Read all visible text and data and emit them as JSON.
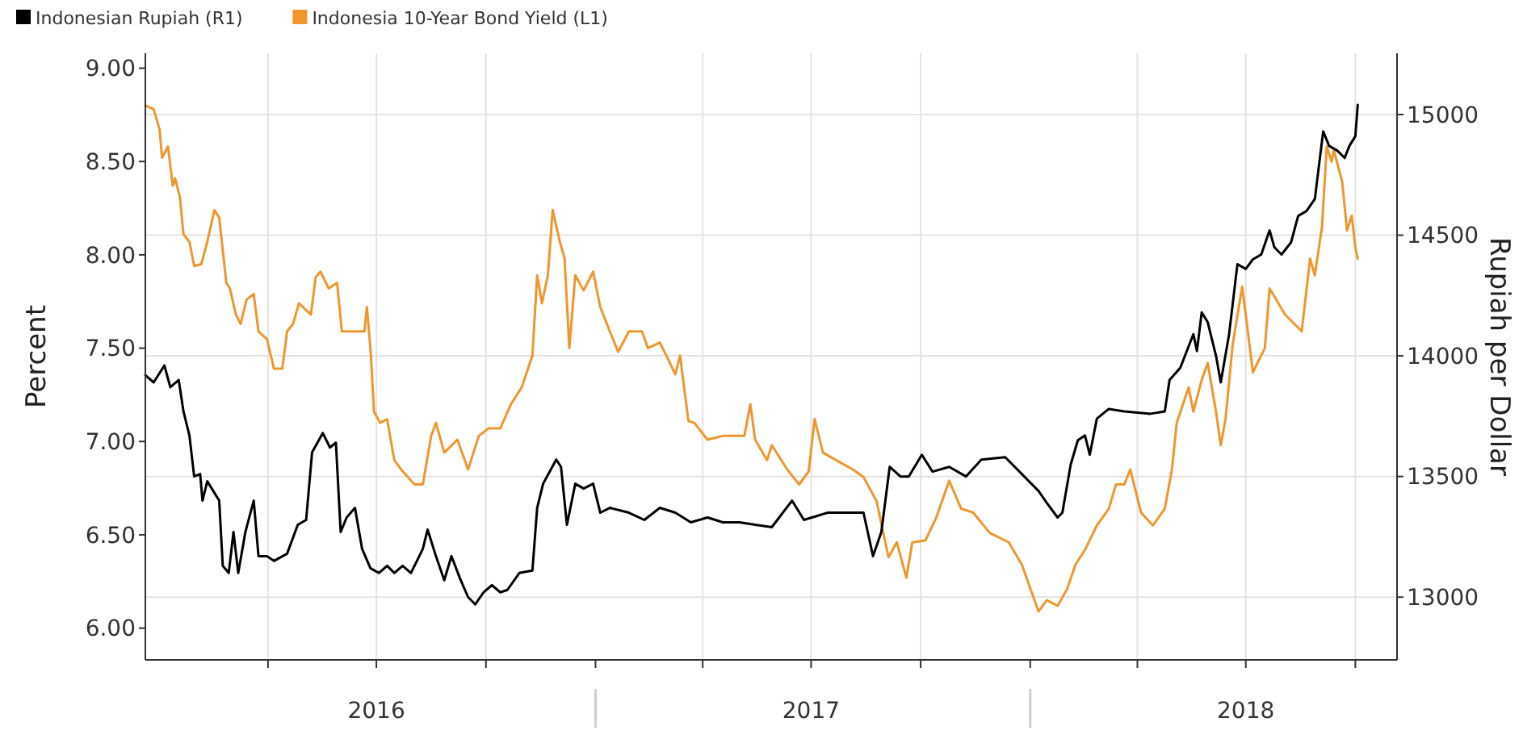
{
  "chart_data": {
    "type": "line",
    "ylabel": "Percent",
    "y2label": "Rupiah per Dollar",
    "legend": "top left",
    "grid": true,
    "xlim": [
      "2015-12-20",
      "2018-11-05"
    ],
    "xticks": [
      {
        "value": "2016-04-01",
        "label": null
      },
      {
        "value": "2016-07-01",
        "label": "2016"
      },
      {
        "value": "2016-10-01",
        "label": null
      },
      {
        "value": "2017-01-01",
        "label": null
      },
      {
        "value": "2017-04-01",
        "label": null
      },
      {
        "value": "2017-07-01",
        "label": "2017"
      },
      {
        "value": "2017-10-01",
        "label": null
      },
      {
        "value": "2018-01-01",
        "label": null
      },
      {
        "value": "2018-04-01",
        "label": null
      },
      {
        "value": "2018-07-01",
        "label": "2018"
      },
      {
        "value": "2018-10-01",
        "label": null
      }
    ],
    "ylim": [
      5.83,
      9.08
    ],
    "yticks": [
      {
        "value": 6,
        "label": "6.00"
      },
      {
        "value": 6.5,
        "label": "6.50"
      },
      {
        "value": 7,
        "label": "7.00"
      },
      {
        "value": 7.5,
        "label": "7.50"
      },
      {
        "value": 8,
        "label": "8.00"
      },
      {
        "value": 8.5,
        "label": "8.50"
      },
      {
        "value": 9,
        "label": "9.00"
      }
    ],
    "y2lim": [
      12740,
      15254
    ],
    "y2ticks": [
      13000,
      13500,
      14000,
      14500,
      15000
    ],
    "series": [
      {
        "name": "Indonesian Rupiah (R1)",
        "color": "#000000",
        "axis": "y2",
        "x": [
          "2015-12-20",
          "2015-12-27",
          "2016-01-05",
          "2016-01-10",
          "2016-01-17",
          "2016-01-21",
          "2016-01-26",
          "2016-01-30",
          "2016-02-04",
          "2016-02-06",
          "2016-02-10",
          "2016-02-20",
          "2016-02-23",
          "2016-02-28",
          "2016-03-03",
          "2016-03-07",
          "2016-03-13",
          "2016-03-20",
          "2016-03-24",
          "2016-03-31",
          "2016-04-06",
          "2016-04-17",
          "2016-04-26",
          "2016-05-03",
          "2016-05-08",
          "2016-05-17",
          "2016-05-23",
          "2016-05-28",
          "2016-06-01",
          "2016-06-06",
          "2016-06-13",
          "2016-06-19",
          "2016-06-26",
          "2016-07-03",
          "2016-07-10",
          "2016-07-16",
          "2016-07-23",
          "2016-07-30",
          "2016-08-09",
          "2016-08-13",
          "2016-08-20",
          "2016-08-27",
          "2016-09-02",
          "2016-09-09",
          "2016-09-16",
          "2016-09-22",
          "2016-09-29",
          "2016-10-06",
          "2016-10-13",
          "2016-10-19",
          "2016-10-29",
          "2016-11-09",
          "2016-11-13",
          "2016-11-18",
          "2016-11-29",
          "2016-12-03",
          "2016-12-08",
          "2016-12-15",
          "2016-12-22",
          "2016-12-30",
          "2017-01-05",
          "2017-01-13",
          "2017-01-29",
          "2017-02-11",
          "2017-02-24",
          "2017-03-09",
          "2017-03-22",
          "2017-04-05",
          "2017-04-18",
          "2017-05-02",
          "2017-05-15",
          "2017-05-29",
          "2017-06-15",
          "2017-06-25",
          "2017-07-15",
          "2017-07-28",
          "2017-08-14",
          "2017-08-22",
          "2017-08-29",
          "2017-09-05",
          "2017-09-14",
          "2017-09-21",
          "2017-10-02",
          "2017-10-11",
          "2017-10-25",
          "2017-11-08",
          "2017-11-21",
          "2017-12-11",
          "2017-12-27",
          "2018-01-08",
          "2018-01-15",
          "2018-01-24",
          "2018-01-28",
          "2018-02-04",
          "2018-02-10",
          "2018-02-16",
          "2018-02-20",
          "2018-02-26",
          "2018-03-08",
          "2018-03-21",
          "2018-04-12",
          "2018-04-24",
          "2018-04-28",
          "2018-05-07",
          "2018-05-18",
          "2018-05-21",
          "2018-05-25",
          "2018-05-30",
          "2018-06-06",
          "2018-06-10",
          "2018-06-17",
          "2018-06-24",
          "2018-07-01",
          "2018-07-07",
          "2018-07-14",
          "2018-07-21",
          "2018-07-25",
          "2018-07-31",
          "2018-08-08",
          "2018-08-14",
          "2018-08-21",
          "2018-08-28",
          "2018-09-04",
          "2018-09-09",
          "2018-09-16",
          "2018-09-22",
          "2018-09-26",
          "2018-10-01",
          "2018-10-03"
        ],
        "values": [
          13920,
          13890,
          13960,
          13870,
          13900,
          13770,
          13670,
          13500,
          13510,
          13400,
          13480,
          13400,
          13130,
          13100,
          13270,
          13100,
          13270,
          13400,
          13170,
          13170,
          13150,
          13180,
          13300,
          13320,
          13600,
          13680,
          13620,
          13640,
          13270,
          13330,
          13370,
          13200,
          13120,
          13100,
          13130,
          13100,
          13130,
          13100,
          13200,
          13280,
          13170,
          13070,
          13170,
          13080,
          13000,
          12970,
          13020,
          13050,
          13020,
          13030,
          13100,
          13110,
          13370,
          13470,
          13570,
          13540,
          13300,
          13470,
          13450,
          13470,
          13350,
          13370,
          13350,
          13320,
          13370,
          13350,
          13310,
          13330,
          13310,
          13310,
          13300,
          13290,
          13400,
          13320,
          13350,
          13350,
          13350,
          13170,
          13270,
          13540,
          13500,
          13500,
          13590,
          13520,
          13540,
          13500,
          13570,
          13580,
          13500,
          13440,
          13390,
          13330,
          13350,
          13550,
          13650,
          13670,
          13590,
          13740,
          13780,
          13770,
          13760,
          13770,
          13900,
          13950,
          14090,
          14020,
          14180,
          14140,
          14000,
          13890,
          14090,
          14380,
          14360,
          14400,
          14420,
          14520,
          14450,
          14420,
          14470,
          14580,
          14600,
          14650,
          14930,
          14870,
          14850,
          14820,
          14870,
          14910,
          15040
        ]
      },
      {
        "name": "Indonesia 10-Year Bond Yield (L1)",
        "color": "#f0962e",
        "axis": "y",
        "x": [
          "2015-12-20",
          "2015-12-27",
          "2016-01-01",
          "2016-01-03",
          "2016-01-08",
          "2016-01-12",
          "2016-01-14",
          "2016-01-18",
          "2016-01-21",
          "2016-01-26",
          "2016-01-30",
          "2016-02-05",
          "2016-02-10",
          "2016-02-16",
          "2016-02-20",
          "2016-02-26",
          "2016-02-29",
          "2016-03-05",
          "2016-03-09",
          "2016-03-14",
          "2016-03-20",
          "2016-03-24",
          "2016-03-31",
          "2016-04-06",
          "2016-04-13",
          "2016-04-17",
          "2016-04-22",
          "2016-04-27",
          "2016-05-07",
          "2016-05-11",
          "2016-05-15",
          "2016-05-22",
          "2016-05-29",
          "2016-06-02",
          "2016-06-13",
          "2016-06-21",
          "2016-06-23",
          "2016-06-26",
          "2016-06-29",
          "2016-07-04",
          "2016-07-10",
          "2016-07-16",
          "2016-07-23",
          "2016-08-02",
          "2016-08-09",
          "2016-08-16",
          "2016-08-20",
          "2016-08-27",
          "2016-09-07",
          "2016-09-16",
          "2016-09-25",
          "2016-10-03",
          "2016-10-13",
          "2016-10-22",
          "2016-10-31",
          "2016-11-09",
          "2016-11-13",
          "2016-11-17",
          "2016-11-22",
          "2016-11-26",
          "2016-12-02",
          "2016-12-06",
          "2016-12-10",
          "2016-12-15",
          "2016-12-22",
          "2016-12-30",
          "2017-01-05",
          "2017-01-13",
          "2017-01-20",
          "2017-01-29",
          "2017-02-09",
          "2017-02-14",
          "2017-02-24",
          "2017-03-03",
          "2017-03-09",
          "2017-03-13",
          "2017-03-20",
          "2017-03-25",
          "2017-04-05",
          "2017-04-18",
          "2017-05-06",
          "2017-05-11",
          "2017-05-15",
          "2017-05-25",
          "2017-05-29",
          "2017-06-11",
          "2017-06-21",
          "2017-06-29",
          "2017-07-04",
          "2017-07-11",
          "2017-07-22",
          "2017-08-05",
          "2017-08-14",
          "2017-08-25",
          "2017-09-04",
          "2017-09-11",
          "2017-09-19",
          "2017-09-24",
          "2017-10-05",
          "2017-10-14",
          "2017-10-25",
          "2017-11-04",
          "2017-11-14",
          "2017-11-28",
          "2017-12-14",
          "2017-12-25",
          "2018-01-04",
          "2018-01-08",
          "2018-01-15",
          "2018-01-24",
          "2018-02-01",
          "2018-02-08",
          "2018-02-16",
          "2018-02-26",
          "2018-03-08",
          "2018-03-14",
          "2018-03-21",
          "2018-03-26",
          "2018-04-04",
          "2018-04-14",
          "2018-04-24",
          "2018-04-30",
          "2018-05-04",
          "2018-05-14",
          "2018-05-18",
          "2018-05-25",
          "2018-05-30",
          "2018-06-06",
          "2018-06-10",
          "2018-06-14",
          "2018-06-20",
          "2018-06-28",
          "2018-07-07",
          "2018-07-17",
          "2018-07-21",
          "2018-08-03",
          "2018-08-17",
          "2018-08-24",
          "2018-08-28",
          "2018-09-03",
          "2018-09-07",
          "2018-09-11",
          "2018-09-13",
          "2018-09-20",
          "2018-09-24",
          "2018-09-28",
          "2018-10-01",
          "2018-10-03"
        ],
        "values": [
          8.8,
          8.78,
          8.67,
          8.52,
          8.58,
          8.37,
          8.41,
          8.31,
          8.11,
          8.07,
          7.94,
          7.95,
          8.07,
          8.24,
          8.2,
          7.85,
          7.82,
          7.68,
          7.63,
          7.76,
          7.79,
          7.59,
          7.55,
          7.39,
          7.39,
          7.59,
          7.63,
          7.74,
          7.68,
          7.88,
          7.91,
          7.82,
          7.85,
          7.59,
          7.59,
          7.59,
          7.72,
          7.5,
          7.16,
          7.1,
          7.12,
          6.9,
          6.84,
          6.77,
          6.77,
          7.03,
          7.1,
          6.94,
          7.01,
          6.85,
          7.03,
          7.07,
          7.07,
          7.2,
          7.29,
          7.46,
          7.89,
          7.74,
          7.89,
          8.24,
          8.07,
          7.98,
          7.5,
          7.89,
          7.81,
          7.91,
          7.72,
          7.59,
          7.48,
          7.59,
          7.59,
          7.5,
          7.53,
          7.44,
          7.36,
          7.46,
          7.11,
          7.1,
          7.01,
          7.03,
          7.03,
          7.2,
          7.01,
          6.9,
          6.98,
          6.85,
          6.77,
          6.84,
          7.12,
          6.94,
          6.9,
          6.85,
          6.81,
          6.68,
          6.38,
          6.46,
          6.27,
          6.46,
          6.47,
          6.59,
          6.79,
          6.64,
          6.62,
          6.51,
          6.46,
          6.34,
          6.16,
          6.09,
          6.15,
          6.12,
          6.21,
          6.34,
          6.42,
          6.55,
          6.64,
          6.77,
          6.77,
          6.85,
          6.62,
          6.55,
          6.64,
          6.85,
          7.1,
          7.29,
          7.16,
          7.33,
          7.42,
          7.16,
          6.98,
          7.12,
          7.52,
          7.83,
          7.37,
          7.5,
          7.82,
          7.68,
          7.59,
          7.98,
          7.89,
          8.15,
          8.58,
          8.5,
          8.56,
          8.39,
          8.13,
          8.21,
          8.04,
          7.98
        ]
      }
    ]
  }
}
